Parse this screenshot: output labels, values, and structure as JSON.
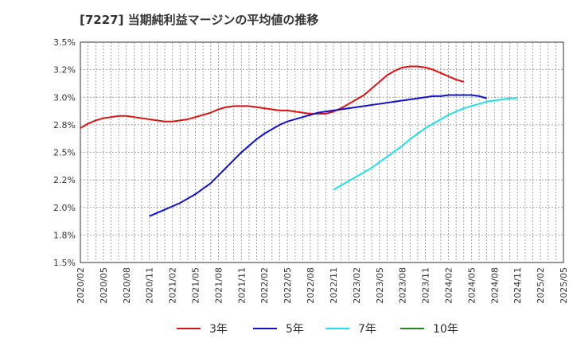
{
  "chart_data": {
    "type": "line",
    "title": "[7227]  当期純利益マージンの平均値の推移",
    "xlabel": "",
    "ylabel": "",
    "ylim": [
      1.5,
      3.5
    ],
    "y_ticks": [
      "1.5%",
      "1.8%",
      "2.0%",
      "2.2%",
      "2.5%",
      "2.8%",
      "3.0%",
      "3.2%",
      "3.5%"
    ],
    "y_tick_values": [
      1.5,
      1.75,
      2.0,
      2.25,
      2.5,
      2.75,
      3.0,
      3.25,
      3.5
    ],
    "x_ticks": [
      "2020/02",
      "2020/05",
      "2020/08",
      "2020/11",
      "2021/02",
      "2021/05",
      "2021/08",
      "2021/11",
      "2022/02",
      "2022/05",
      "2022/08",
      "2022/11",
      "2023/02",
      "2023/05",
      "2023/08",
      "2023/11",
      "2024/02",
      "2024/05",
      "2024/08",
      "2024/11",
      "2025/02",
      "2025/05"
    ],
    "grid": true,
    "legend_position": "bottom",
    "series": [
      {
        "name": "3年",
        "color": "#dd1111",
        "values": [
          2.72,
          2.76,
          2.79,
          2.81,
          2.82,
          2.83,
          2.83,
          2.82,
          2.81,
          2.8,
          2.79,
          2.78,
          2.78,
          2.79,
          2.8,
          2.82,
          2.84,
          2.86,
          2.89,
          2.91,
          2.92,
          2.92,
          2.92,
          2.91,
          2.9,
          2.89,
          2.88,
          2.88,
          2.87,
          2.86,
          2.85,
          2.85,
          2.85,
          2.87,
          2.9,
          2.94,
          2.98,
          3.02,
          3.08,
          3.14,
          3.2,
          3.24,
          3.27,
          3.28,
          3.28,
          3.27,
          3.25,
          3.22,
          3.19,
          3.16,
          3.14
        ]
      },
      {
        "name": "5年",
        "color": "#1111cc",
        "values": [
          null,
          null,
          null,
          null,
          null,
          null,
          null,
          null,
          null,
          null,
          null,
          null,
          null,
          null,
          null,
          null,
          null,
          null,
          null,
          null,
          null,
          null,
          null,
          null,
          null,
          null,
          null,
          null,
          null,
          null,
          null,
          null,
          null,
          null,
          null,
          null,
          null,
          null,
          null,
          null,
          null,
          null,
          null,
          null,
          null,
          null,
          null,
          null,
          null,
          null,
          null
        ]
      },
      {
        "name": "7年",
        "color": "#22e0e8",
        "values": []
      },
      {
        "name": "10年",
        "color": "#228822",
        "values": []
      }
    ],
    "series_x_start": "2020/02",
    "series_5y": [
      1.92,
      1.95,
      1.98,
      2.01,
      2.04,
      2.08,
      2.12,
      2.17,
      2.22,
      2.29,
      2.36,
      2.43,
      2.5,
      2.56,
      2.62,
      2.67,
      2.71,
      2.75,
      2.78,
      2.8,
      2.82,
      2.84,
      2.86,
      2.87,
      2.88,
      2.89,
      2.9,
      2.91,
      2.92,
      2.93,
      2.94,
      2.95,
      2.96,
      2.97,
      2.98,
      2.99,
      3.0,
      3.01,
      3.01,
      3.02,
      3.02,
      3.02,
      3.02,
      3.01,
      2.99
    ],
    "series_5y_start": "2020/11",
    "series_7y": [
      2.16,
      2.2,
      2.24,
      2.28,
      2.32,
      2.36,
      2.41,
      2.46,
      2.51,
      2.56,
      2.62,
      2.67,
      2.72,
      2.76,
      2.8,
      2.84,
      2.87,
      2.9,
      2.92,
      2.94,
      2.96,
      2.97,
      2.98,
      2.99,
      2.99
    ],
    "series_7y_start": "2022/11"
  }
}
